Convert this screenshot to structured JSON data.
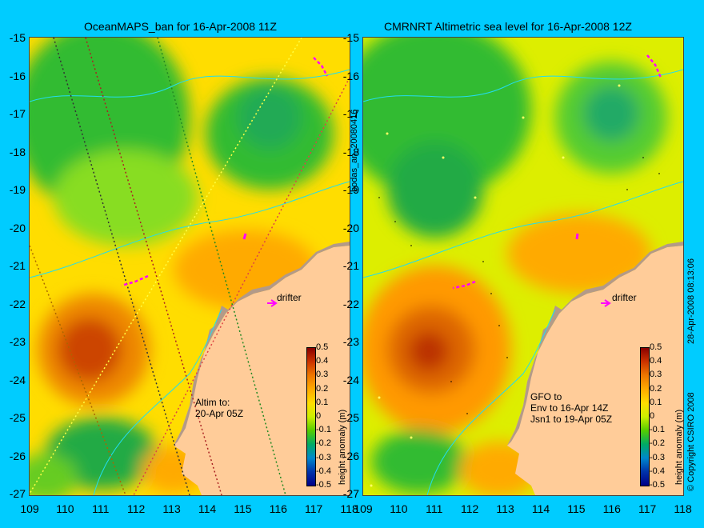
{
  "map_left": {
    "title": "OceanMAPS_ban for 16-Apr-2008 11Z",
    "annotation_altim": "Altim to:\n20-Apr 05Z",
    "annotation_drifter": "drifter"
  },
  "map_right": {
    "title": "CMRNRT Altimetric sea level  for 16-Apr-2008 12Z",
    "annotation_gfo": "GFO to\nEnv to 16-Apr 14Z\nJsn1 to 19-Apr 05Z",
    "annotation_drifter": "drifter"
  },
  "axes": {
    "x_ticks": [
      "109",
      "110",
      "111",
      "112",
      "113",
      "114",
      "115",
      "116",
      "117",
      "118"
    ],
    "y_ticks": [
      "-15",
      "-16",
      "-17",
      "-18",
      "-19",
      "-20",
      "-21",
      "-22",
      "-23",
      "-24",
      "-25",
      "-26",
      "-27"
    ]
  },
  "colorbar": {
    "label": "height anomaly (m)",
    "ticks": [
      "0.5",
      "0.4",
      "0.3",
      "0.2",
      "0.1",
      "0",
      "-0.1",
      "-0.2",
      "-0.3",
      "-0.4",
      "-0.5"
    ]
  },
  "side_labels": {
    "run_id": "bodas_an_20080416",
    "date_stamp": "28-Apr-2008 08:13:06",
    "copyright": "© Copyright CSIRO 2008"
  },
  "colors": {
    "background": "#00ccff",
    "land": "#ffcc99",
    "shelf": "#b39a88",
    "drifter": "#ff00ff"
  }
}
